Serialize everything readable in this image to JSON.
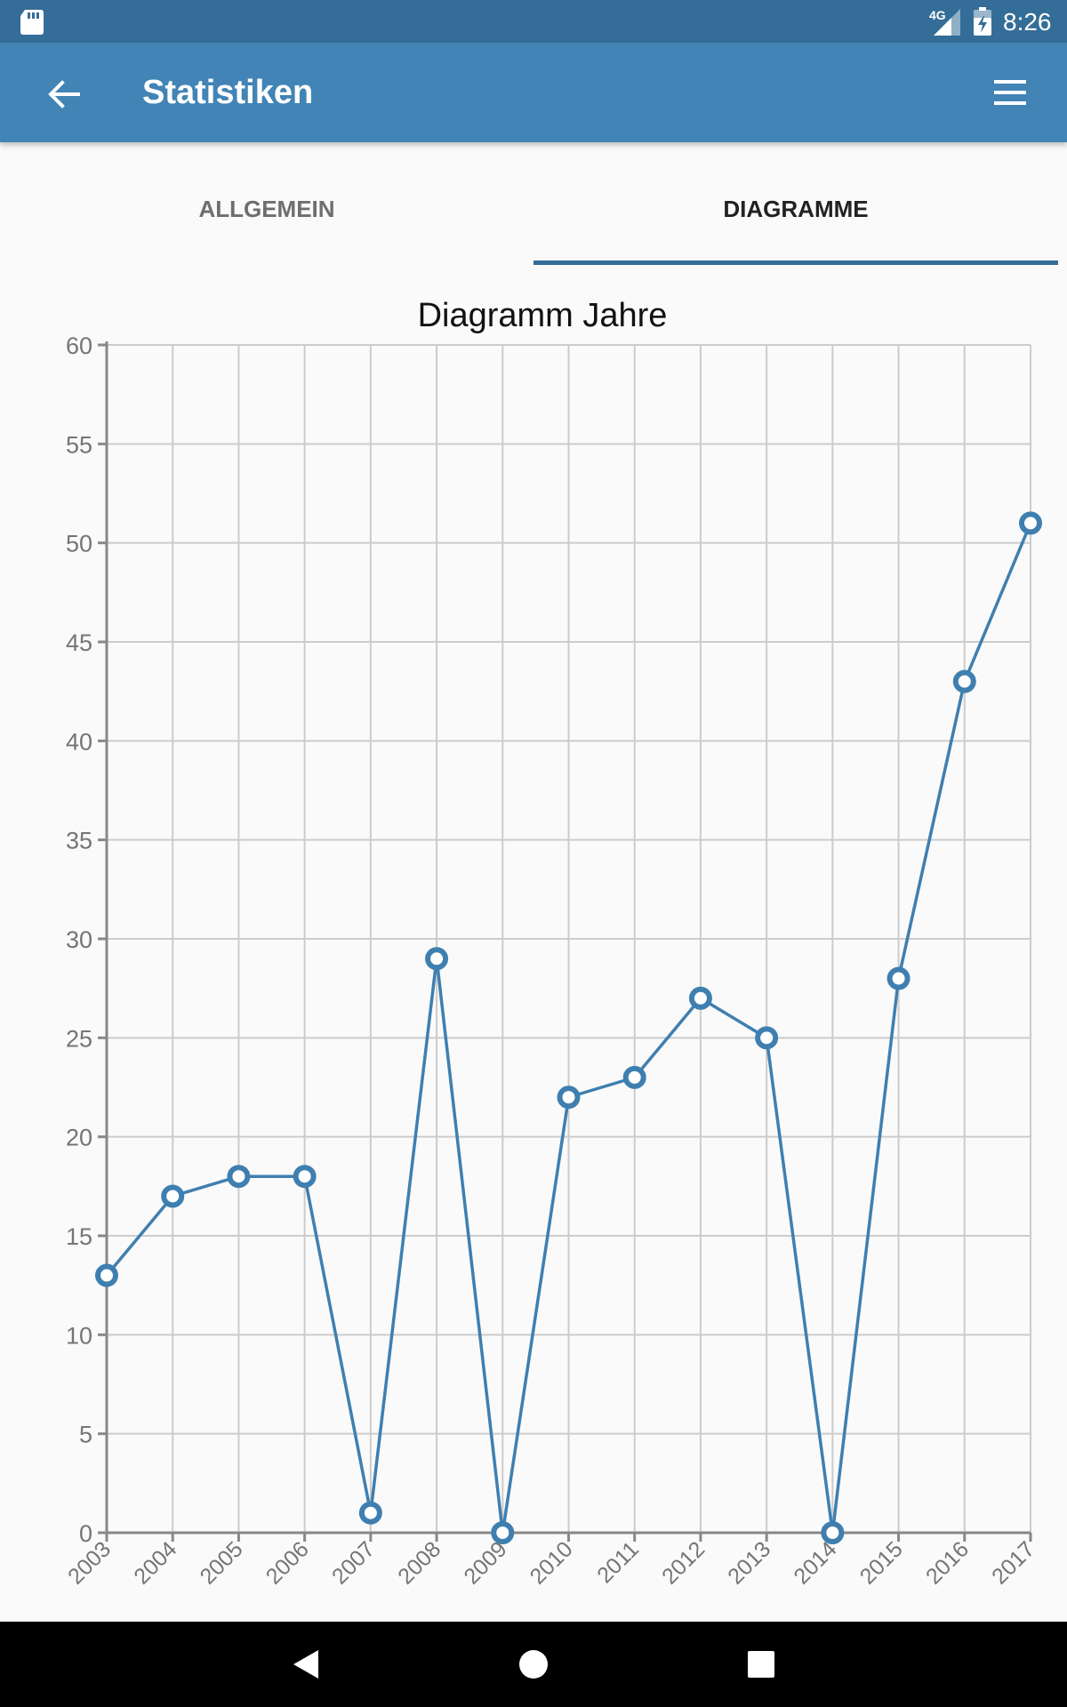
{
  "status_bar": {
    "network_type": "4G",
    "time": "8:26"
  },
  "app_bar": {
    "title": "Statistiken",
    "color": "#4184b5"
  },
  "tabs": [
    {
      "label": "ALLGEMEIN",
      "selected": false
    },
    {
      "label": "DIAGRAMME",
      "selected": true
    }
  ],
  "accent_color": "#346d97",
  "icons": {
    "status_left": "sd-card-icon",
    "status_signal": "signal-icon",
    "status_battery": "battery-charging-icon",
    "back": "arrow-back-icon",
    "menu": "hamburger-menu-icon",
    "nav_back": "nav-back-icon",
    "nav_home": "nav-home-icon",
    "nav_recents": "nav-recents-icon"
  },
  "chart_data": {
    "type": "line",
    "title": "Diagramm Jahre",
    "xlabel": "",
    "ylabel": "",
    "categories": [
      "2003",
      "2004",
      "2005",
      "2006",
      "2007",
      "2008",
      "2009",
      "2010",
      "2011",
      "2012",
      "2013",
      "2014",
      "2015",
      "2016",
      "2017"
    ],
    "series": [
      {
        "values": [
          13,
          17,
          18,
          18,
          1,
          29,
          0,
          22,
          23,
          27,
          25,
          0,
          28,
          43,
          51
        ]
      }
    ],
    "ylim": [
      0,
      60
    ],
    "yticks": [
      0,
      5,
      10,
      15,
      20,
      25,
      30,
      35,
      40,
      45,
      50,
      55,
      60
    ],
    "grid": true,
    "line_color": "#3f7fb0",
    "marker": "hollow-circle"
  }
}
